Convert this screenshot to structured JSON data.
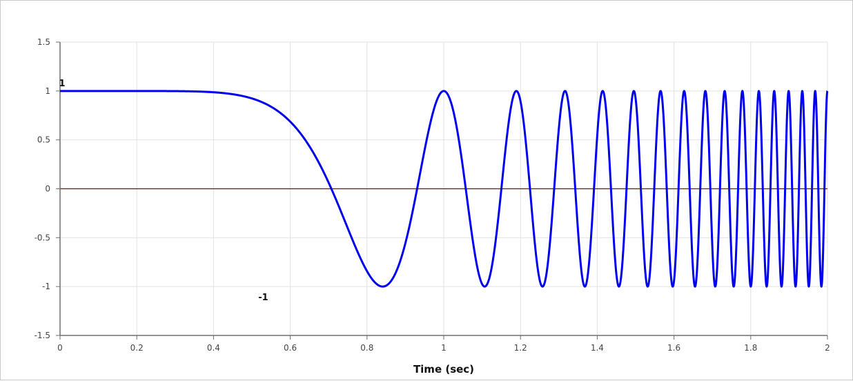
{
  "chart_data": {
    "type": "line",
    "title": "",
    "xlabel": "Time (sec)",
    "ylabel": "",
    "xlim": [
      0,
      2
    ],
    "ylim": [
      -1.5,
      1.5
    ],
    "x_ticks": [
      0,
      0.2,
      0.4,
      0.6,
      0.8,
      1,
      1.2,
      1.4,
      1.6,
      1.8,
      2
    ],
    "y_ticks": [
      1.5,
      1,
      0.5,
      0,
      -0.5,
      -1,
      -1.5
    ],
    "grid": true,
    "series": [
      {
        "function": "cos(2*pi*t^4)",
        "t_range": [
          0,
          2
        ],
        "color": "#0000ee"
      }
    ],
    "reference_lines": [
      {
        "y": 0,
        "color": "#8b0000"
      }
    ],
    "annotations": [
      {
        "text": "1",
        "x": 0,
        "y": 1
      },
      {
        "text": "-1",
        "x": 0.5297,
        "y": -1
      }
    ],
    "colors": {
      "grid": "#e2e2e2",
      "axis": "#6e6e6e",
      "series": "#0000ee",
      "zero_line": "#8b0000"
    }
  }
}
